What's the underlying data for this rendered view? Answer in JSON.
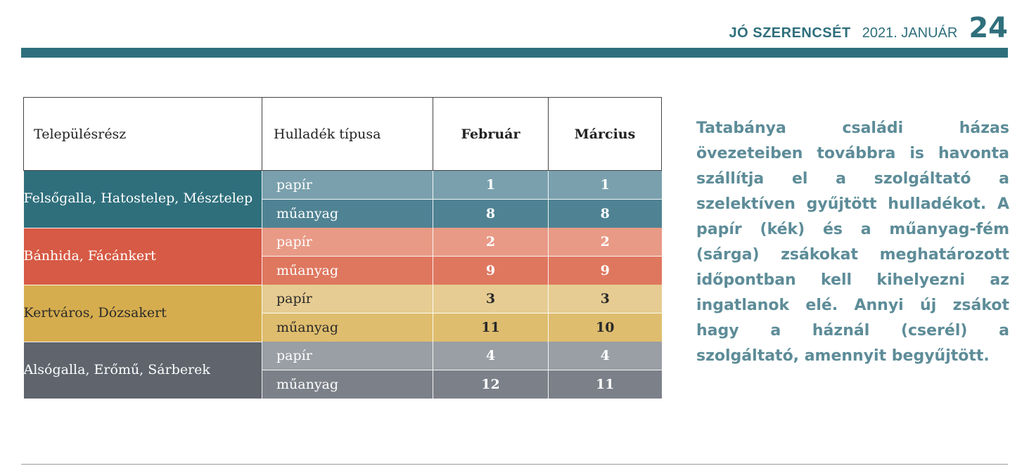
{
  "header": {
    "publication": "JÓ SZERENCSÉT",
    "date": "2021. JANUÁR",
    "page_number": "24"
  },
  "table": {
    "col_headers": [
      "Településrész",
      "Hulladék típusa",
      "Február",
      "Március"
    ],
    "rows": [
      {
        "region": "Felsőgalla, Hatostelep, Mésztelep",
        "items": [
          {
            "type": "papír",
            "feb": "1",
            "mar": "1"
          },
          {
            "type": "műanyag",
            "feb": "8",
            "mar": "8"
          }
        ]
      },
      {
        "region": "Bánhida, Fácánkert",
        "items": [
          {
            "type": "papír",
            "feb": "2",
            "mar": "2"
          },
          {
            "type": "műanyag",
            "feb": "9",
            "mar": "9"
          }
        ]
      },
      {
        "region": "Kertváros, Dózsakert",
        "items": [
          {
            "type": "papír",
            "feb": "3",
            "mar": "3"
          },
          {
            "type": "műanyag",
            "feb": "11",
            "mar": "10"
          }
        ]
      },
      {
        "region": "Alsógalla, Erőmű, Sárberek",
        "items": [
          {
            "type": "papír",
            "feb": "4",
            "mar": "4"
          },
          {
            "type": "műanyag",
            "feb": "12",
            "mar": "11"
          }
        ]
      }
    ]
  },
  "paragraph": "Tatabánya családi házas övezeteiben továbbra is havonta szállítja el a szolgáltató a szelektíven gyűjtött hulladékot. A papír (kék) és a műanyag-fém (sárga) zsákokat meghatározott időpontban kell kihelyezni az ingatlanok elé. Annyi új zsákot hagy a háznál (cserél) a szolgáltató, amennyit begyűjtött.",
  "colors": {
    "accent": "#2f6f7c",
    "region_1": "#2f6f7c",
    "region_2": "#d65a45",
    "region_3": "#d6ad4e",
    "region_4": "#5f646d",
    "paragraph_text": "#5d8c98"
  }
}
